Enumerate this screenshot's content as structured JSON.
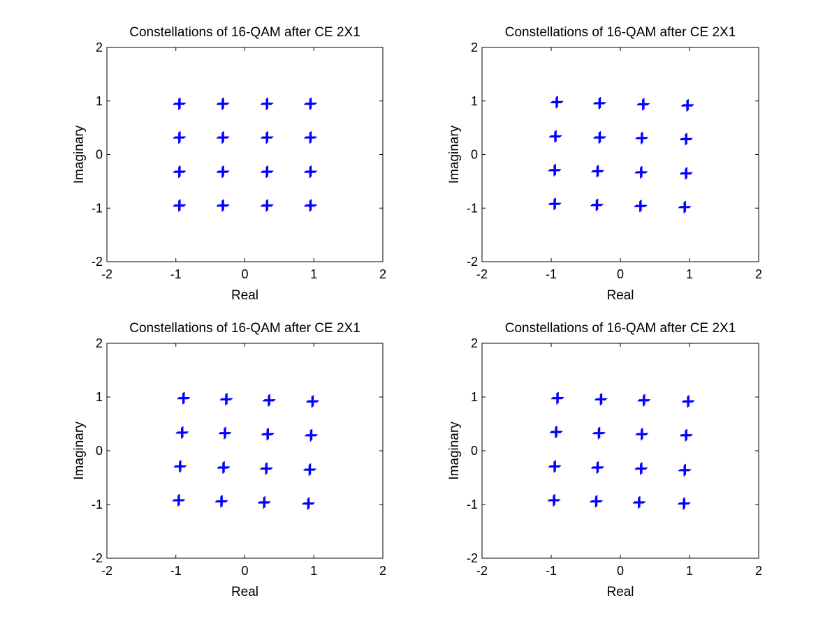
{
  "chart_data": [
    {
      "type": "scatter",
      "title": "Constellations of 16-QAM after CE 2X1",
      "xlabel": "Real",
      "ylabel": "Imaginary",
      "xlim": [
        -2,
        2
      ],
      "ylim": [
        -2,
        2
      ],
      "xticks": [
        "-2",
        "-1",
        "0",
        "1",
        "2"
      ],
      "yticks": [
        "-2",
        "-1",
        "0",
        "1",
        "2"
      ],
      "grid": false,
      "marker": "+",
      "color": "#0000ff",
      "x": [
        -0.95,
        -0.32,
        0.32,
        0.95,
        -0.95,
        -0.32,
        0.32,
        0.95,
        -0.95,
        -0.32,
        0.32,
        0.95,
        -0.95,
        -0.32,
        0.32,
        0.95
      ],
      "y": [
        0.95,
        0.95,
        0.95,
        0.95,
        0.32,
        0.32,
        0.32,
        0.32,
        -0.32,
        -0.32,
        -0.32,
        -0.32,
        -0.95,
        -0.95,
        -0.95,
        -0.95
      ]
    },
    {
      "type": "scatter",
      "title": "Constellations of 16-QAM after CE 2X1",
      "xlabel": "Real",
      "ylabel": "Imaginary",
      "xlim": [
        -2,
        2
      ],
      "ylim": [
        -2,
        2
      ],
      "xticks": [
        "-2",
        "-1",
        "0",
        "1",
        "2"
      ],
      "yticks": [
        "-2",
        "-1",
        "0",
        "1",
        "2"
      ],
      "grid": false,
      "marker": "+",
      "color": "#0000ff",
      "x": [
        -0.92,
        -0.3,
        0.33,
        0.97,
        -0.94,
        -0.3,
        0.31,
        0.95,
        -0.95,
        -0.33,
        0.3,
        0.95,
        -0.95,
        -0.34,
        0.29,
        0.93
      ],
      "y": [
        0.98,
        0.96,
        0.94,
        0.92,
        0.34,
        0.32,
        0.31,
        0.29,
        -0.29,
        -0.31,
        -0.33,
        -0.35,
        -0.92,
        -0.94,
        -0.96,
        -0.98
      ]
    },
    {
      "type": "scatter",
      "title": "Constellations of 16-QAM after CE 2X1",
      "xlabel": "Real",
      "ylabel": "Imaginary",
      "xlim": [
        -2,
        2
      ],
      "ylim": [
        -2,
        2
      ],
      "xticks": [
        "-2",
        "-1",
        "0",
        "1",
        "2"
      ],
      "yticks": [
        "-2",
        "-1",
        "0",
        "1",
        "2"
      ],
      "grid": false,
      "marker": "+",
      "color": "#0000ff",
      "x": [
        -0.89,
        -0.27,
        0.35,
        0.98,
        -0.91,
        -0.29,
        0.33,
        0.96,
        -0.94,
        -0.31,
        0.31,
        0.94,
        -0.96,
        -0.34,
        0.28,
        0.92
      ],
      "y": [
        0.98,
        0.96,
        0.94,
        0.92,
        0.34,
        0.33,
        0.31,
        0.29,
        -0.29,
        -0.31,
        -0.33,
        -0.35,
        -0.92,
        -0.94,
        -0.96,
        -0.98
      ]
    },
    {
      "type": "scatter",
      "title": "Constellations of 16-QAM after CE 2X1",
      "xlabel": "Real",
      "ylabel": "Imaginary",
      "xlim": [
        -2,
        2
      ],
      "ylim": [
        -2,
        2
      ],
      "xticks": [
        "-2",
        "-1",
        "0",
        "1",
        "2"
      ],
      "yticks": [
        "-2",
        "-1",
        "0",
        "1",
        "2"
      ],
      "grid": false,
      "marker": "+",
      "color": "#0000ff",
      "x": [
        -0.91,
        -0.28,
        0.34,
        0.98,
        -0.93,
        -0.31,
        0.31,
        0.95,
        -0.95,
        -0.33,
        0.3,
        0.93,
        -0.96,
        -0.35,
        0.27,
        0.92
      ],
      "y": [
        0.98,
        0.96,
        0.94,
        0.92,
        0.35,
        0.33,
        0.31,
        0.29,
        -0.29,
        -0.31,
        -0.33,
        -0.36,
        -0.92,
        -0.94,
        -0.96,
        -0.98
      ]
    }
  ]
}
